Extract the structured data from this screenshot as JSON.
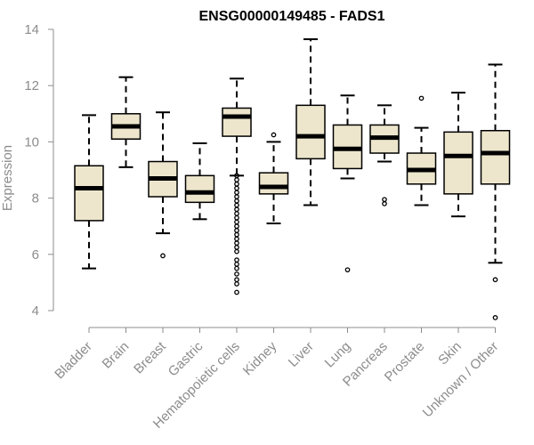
{
  "chart_data": {
    "type": "boxplot",
    "title": "ENSG00000149485 - FADS1",
    "xlabel": "",
    "ylabel": "Expression",
    "ylim": [
      3.6,
      14.2
    ],
    "yticks": [
      4,
      6,
      8,
      10,
      12,
      14
    ],
    "grid": false,
    "box_fill": "#ede6cc",
    "categories": [
      "Bladder",
      "Brain",
      "Breast",
      "Gastric",
      "Hematopoietic cells",
      "Kidney",
      "Liver",
      "Lung",
      "Pancreas",
      "Prostate",
      "Skin",
      "Unknown / Other"
    ],
    "boxes": [
      {
        "name": "Bladder",
        "whisker_low": 5.5,
        "q1": 7.2,
        "median": 8.35,
        "q3": 9.15,
        "whisker_high": 10.95,
        "outliers": []
      },
      {
        "name": "Brain",
        "whisker_low": 9.1,
        "q1": 10.1,
        "median": 10.55,
        "q3": 11.0,
        "whisker_high": 12.3,
        "outliers": []
      },
      {
        "name": "Breast",
        "whisker_low": 6.75,
        "q1": 8.05,
        "median": 8.7,
        "q3": 9.3,
        "whisker_high": 11.05,
        "outliers": [
          5.95
        ]
      },
      {
        "name": "Gastric",
        "whisker_low": 7.25,
        "q1": 7.85,
        "median": 8.2,
        "q3": 8.8,
        "whisker_high": 9.95,
        "outliers": []
      },
      {
        "name": "Hematopoietic cells",
        "whisker_low": 8.8,
        "q1": 10.2,
        "median": 10.9,
        "q3": 11.2,
        "whisker_high": 12.25,
        "outliers": [
          8.8,
          8.65,
          8.5,
          8.35,
          8.2,
          8.05,
          7.9,
          7.75,
          7.6,
          7.45,
          7.3,
          7.15,
          7.0,
          6.85,
          6.7,
          6.55,
          6.4,
          6.25,
          6.1,
          5.8,
          5.65,
          5.5,
          5.3,
          5.1,
          4.95,
          4.65
        ]
      },
      {
        "name": "Kidney",
        "whisker_low": 7.1,
        "q1": 8.15,
        "median": 8.4,
        "q3": 8.9,
        "whisker_high": 10.0,
        "outliers": [
          10.25
        ]
      },
      {
        "name": "Liver",
        "whisker_low": 7.75,
        "q1": 9.4,
        "median": 10.2,
        "q3": 11.3,
        "whisker_high": 13.65,
        "outliers": []
      },
      {
        "name": "Lung",
        "whisker_low": 8.7,
        "q1": 9.05,
        "median": 9.75,
        "q3": 10.6,
        "whisker_high": 11.65,
        "outliers": [
          5.45
        ]
      },
      {
        "name": "Pancreas",
        "whisker_low": 9.3,
        "q1": 9.6,
        "median": 10.15,
        "q3": 10.6,
        "whisker_high": 11.3,
        "outliers": [
          7.95,
          7.8
        ]
      },
      {
        "name": "Prostate",
        "whisker_low": 7.75,
        "q1": 8.5,
        "median": 9.0,
        "q3": 9.6,
        "whisker_high": 10.5,
        "outliers": [
          11.55
        ]
      },
      {
        "name": "Skin",
        "whisker_low": 7.35,
        "q1": 8.15,
        "median": 9.5,
        "q3": 10.35,
        "whisker_high": 11.75,
        "outliers": []
      },
      {
        "name": "Unknown / Other",
        "whisker_low": 5.7,
        "q1": 8.5,
        "median": 9.6,
        "q3": 10.4,
        "whisker_high": 12.75,
        "outliers": [
          5.1,
          3.75
        ]
      }
    ]
  }
}
